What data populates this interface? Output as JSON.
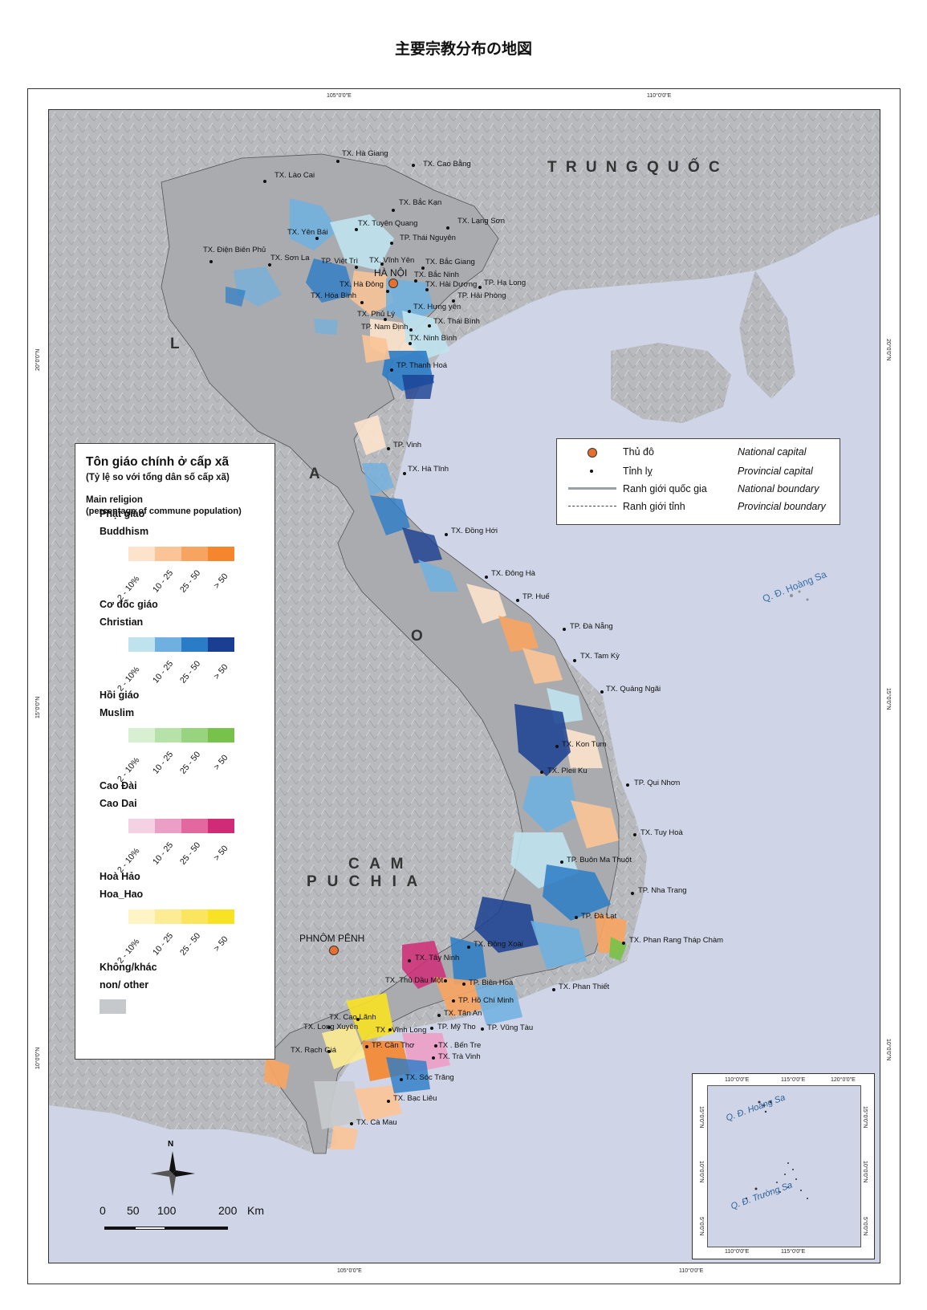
{
  "page_title": "主要宗教分布の地図",
  "coords": {
    "lon_105": "105°0'0\"E",
    "lon_110": "110°0'0\"E",
    "lat_20": "20°0'0\"N",
    "lat_15": "15°0'0\"N",
    "lat_10": "10°0'0\"N"
  },
  "countries": {
    "china": "T R U N G   Q U Ố C",
    "laos_l": "L",
    "laos_a": "A",
    "laos_o": "O",
    "cambodia_1": "C A M",
    "cambodia_2": "P U   C H I A"
  },
  "islands": {
    "hoang_sa": "Q. Đ. Hoàng Sa",
    "truong_sa": "Q. Đ. Trường Sa"
  },
  "places": {
    "hanoi": "HÀ NỘI",
    "phnom_penh": "PHNÔM PÊNH",
    "ha_giang": "TX. Hà Giang",
    "cao_bang": "TX. Cao Bằng",
    "lao_cai": "TX. Lào Cai",
    "bac_kan": "TX. Bắc Kạn",
    "tuyen_quang": "TX. Tuyên Quang",
    "lang_son": "TX. Lạng Sơn",
    "yen_bai": "TX. Yên Bái",
    "thai_nguyen": "TP. Thái Nguyên",
    "dien_bien_phu": "TX. Điện Biên Phủ",
    "son_la": "TX. Sơn La",
    "viet_tri": "TP. Việt Trì",
    "vinh_yen": "TX. Vĩnh Yên",
    "bac_giang": "TX. Bắc Giang",
    "bac_ninh": "TX. Bắc Ninh",
    "ha_dong": "TX. Hà Đông",
    "hai_duong": "TX. Hải Dương",
    "ha_long": "TP. Hạ Long",
    "hoa_binh": "TX. Hòa Bình",
    "hai_phong": "TP. Hải Phòng",
    "hung_yen": "TX. Hưng yên",
    "phu_ly": "TX. Phủ Lý",
    "thai_binh": "TX. Thái Bình",
    "nam_dinh": "TP. Nam Định",
    "ninh_binh": "TX. Ninh Bình",
    "thanh_hoa": "TP. Thanh Hoá",
    "vinh": "TP. Vinh",
    "ha_tinh": "TX. Hà Tĩnh",
    "dong_hoi": "TX. Đồng Hới",
    "dong_ha": "TX. Đông Hà",
    "hue": "TP. Huế",
    "da_nang": "TP. Đà Nẵng",
    "tam_ky": "TX. Tam Kỳ",
    "quang_ngai": "TX. Quảng Ngãi",
    "kon_tum": "TX. Kon Tum",
    "pleiku": "TX. Pleii Ku",
    "qui_nhon": "TP. Qui Nhơn",
    "tuy_hoa": "TX. Tuy Hoà",
    "buon_ma_thuot": "TP. Buôn Ma Thuột",
    "nha_trang": "TP. Nha Trang",
    "da_lat": "TP. Đà Lạt",
    "phan_rang": "TX. Phan Rang Tháp Chàm",
    "dong_xoai": "TX. Đồng Xoài",
    "tay_ninh": "TX. Tây Ninh",
    "thu_dau_mot": "TX. Thủ Dầu Một",
    "bien_hoa": "TP. Biên Hoà",
    "phan_thiet": "TX. Phan Thiết",
    "ho_chi_minh": "TP. Hồ Chí Minh",
    "cao_lanh": "TX. Cao Lãnh",
    "long_xuyen": "TX. Long Xuyên",
    "vinh_long": "TX . Vĩnh Long",
    "my_tho": "TP. Mỹ Tho",
    "vung_tau": "TP. Vũng Tàu",
    "tan_an": "TX. Tân An",
    "can_tho": "TP. Cần Thơ",
    "ben_tre": "TX . Bến Tre",
    "rach_gia": "TX. Rạch Giá",
    "tra_vinh": "TX. Trà Vinh",
    "soc_trang": "TX. Sóc Trăng",
    "bac_lieu": "TX. Bạc Liêu",
    "ca_mau": "TX. Cà Mau"
  },
  "legend": {
    "title": "Tôn giáo chính ở cấp xã",
    "subtitle": "(Tỷ lệ so với tổng dân số cấp xã)",
    "title_en": "Main religion",
    "subtitle_en": "(percentage of commune population)",
    "ranges": [
      "2 - 10%",
      "10 - 25",
      "25 - 50",
      "> 50"
    ],
    "groups": [
      {
        "vi": "Phật giáo",
        "en": "Buddhism",
        "colors": [
          "#fde3cc",
          "#fbc497",
          "#f8a461",
          "#f5862e"
        ]
      },
      {
        "vi": "Cơ đốc giáo",
        "en": "Christian",
        "colors": [
          "#bfe3ee",
          "#6fb0e0",
          "#2b7cc7",
          "#1a3f92"
        ]
      },
      {
        "vi": "Hồi giáo",
        "en": "Muslim",
        "colors": [
          "#d8efd2",
          "#b6e1a8",
          "#98d47e",
          "#77c24a"
        ]
      },
      {
        "vi": "Cao Đài",
        "en": "Cao Dai",
        "colors": [
          "#f4d2e4",
          "#ec9fc6",
          "#e2689f",
          "#d02b77"
        ]
      },
      {
        "vi": "Hoà Hảo",
        "en": "Hoa_Hao",
        "colors": [
          "#fff4c6",
          "#fdec94",
          "#fbe55f",
          "#f8e224"
        ]
      }
    ],
    "none_vi": "Không/khác",
    "none_en": "non/ other",
    "none_color": "#c6c9cc"
  },
  "info_legend": {
    "rows": [
      {
        "vi": "Thủ đô",
        "en": "National capital"
      },
      {
        "vi": "Tỉnh lỵ",
        "en": "Provincial capital"
      },
      {
        "vi": "Ranh giới quốc gia",
        "en": "National boundary"
      },
      {
        "vi": "Ranh giới tỉnh",
        "en": "Provincial boundary"
      }
    ]
  },
  "inset": {
    "lon_110": "110°0'0\"E",
    "lon_115": "115°0'0\"E",
    "lon_120": "120°0'0\"E",
    "lat_15": "15°0'0\"N",
    "lat_10": "10°0'0\"N",
    "lat_5": "5°0'0\"N"
  },
  "scale": {
    "t0": "0",
    "t1": "50",
    "t2": "100",
    "t3": "200",
    "unit": "Km"
  },
  "north": "N",
  "colors": {
    "sea": "#cdd3e4",
    "land": "#b9bbbe",
    "capital": "#e8702f"
  }
}
